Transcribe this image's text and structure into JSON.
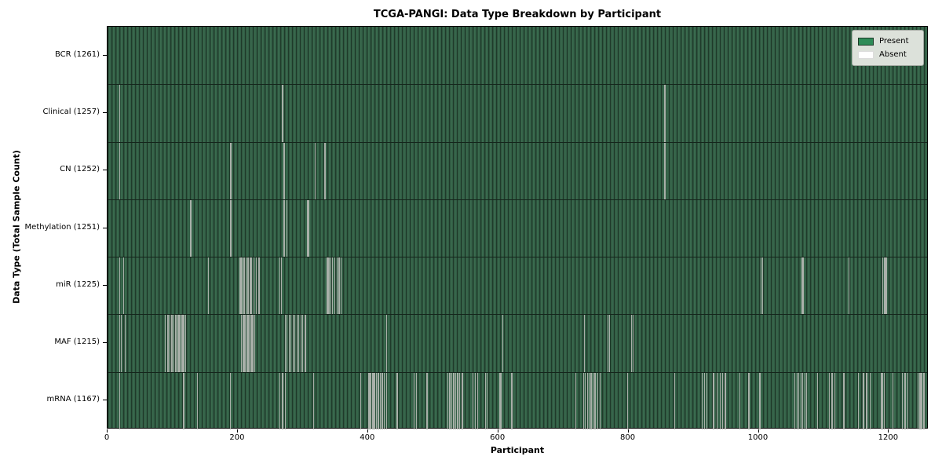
{
  "title": "TCGA-PANGI: Data Type Breakdown by Participant",
  "xlabel": "Participant",
  "ylabel": "Data Type (Total Sample Count)",
  "legend": {
    "present_label": "Present",
    "absent_label": "Absent"
  },
  "colors": {
    "present": "#2e8b57",
    "present_bar_light": "#3a6b4e",
    "present_bar_dark": "#1f3a2a",
    "absent": "#ffffff",
    "absent_stripe": "#a9b0a9",
    "legend_bg": "#dce1da",
    "row_divider": "#14251b"
  },
  "chart_data": {
    "type": "heatmap",
    "title": "TCGA-PANGI: Data Type Breakdown by Participant",
    "xlabel": "Participant",
    "ylabel": "Data Type (Total Sample Count)",
    "legend_entries": [
      "Present",
      "Absent"
    ],
    "legend_position": "upper right",
    "n_participants": 1261,
    "x_ticks": [
      0,
      200,
      400,
      600,
      800,
      1000,
      1200
    ],
    "xlim": [
      0,
      1261
    ],
    "rows": [
      {
        "name": "BCR",
        "label": "BCR (1261)",
        "total_samples": 1261,
        "absent_positions": []
      },
      {
        "name": "Clinical",
        "label": "Clinical (1257)",
        "total_samples": 1257,
        "absent_positions": [
          18,
          268,
          855,
          856
        ]
      },
      {
        "name": "CN",
        "label": "CN (1252)",
        "total_samples": 1252,
        "absent_positions": [
          18,
          188,
          189,
          270,
          271,
          318,
          333,
          855,
          856
        ]
      },
      {
        "name": "Methylation",
        "label": "Methylation (1251)",
        "total_samples": 1251,
        "absent_positions": [
          126,
          127,
          188,
          189,
          270,
          271,
          275,
          306,
          307,
          308
        ]
      },
      {
        "name": "miR",
        "label": "miR (1225)",
        "total_samples": 1225,
        "absent_positions": [
          18,
          24,
          154,
          202,
          204,
          206,
          208,
          210,
          212,
          214,
          216,
          218,
          220,
          224,
          228,
          232,
          264,
          266,
          336,
          338,
          340,
          342,
          345,
          348,
          352,
          355,
          358,
          1003,
          1005,
          1066,
          1068,
          1138,
          1190,
          1192,
          1194,
          1196
        ]
      },
      {
        "name": "MAF",
        "label": "MAF (1215)",
        "total_samples": 1215,
        "absent_positions": [
          18,
          20,
          26,
          88,
          92,
          95,
          98,
          101,
          104,
          107,
          109,
          111,
          113,
          115,
          117,
          119,
          205,
          207,
          209,
          211,
          213,
          215,
          217,
          219,
          221,
          223,
          225,
          272,
          275,
          278,
          281,
          284,
          287,
          290,
          293,
          296,
          299,
          302,
          304,
          428,
          606,
          732,
          768,
          770,
          804,
          806
        ]
      },
      {
        "name": "mRNA",
        "label": "mRNA (1167)",
        "total_samples": 1167,
        "absent_positions": [
          18,
          116,
          137,
          188,
          264,
          268,
          272,
          316,
          388,
          400,
          402,
          404,
          406,
          408,
          410,
          412,
          415,
          418,
          421,
          424,
          428,
          444,
          470,
          474,
          490,
          522,
          525,
          528,
          531,
          534,
          537,
          540,
          544,
          560,
          564,
          568,
          580,
          582,
          602,
          604,
          620,
          718,
          730,
          733,
          736,
          739,
          742,
          745,
          748,
          752,
          756,
          798,
          870,
          912,
          916,
          920,
          930,
          935,
          940,
          944,
          948,
          970,
          984,
          1000,
          1002,
          1055,
          1058,
          1061,
          1064,
          1067,
          1070,
          1073,
          1090,
          1108,
          1112,
          1116,
          1130,
          1152,
          1160,
          1165,
          1170,
          1188,
          1190,
          1192,
          1205,
          1220,
          1224,
          1228,
          1244,
          1246,
          1248,
          1250,
          1252,
          1254
        ]
      }
    ]
  }
}
